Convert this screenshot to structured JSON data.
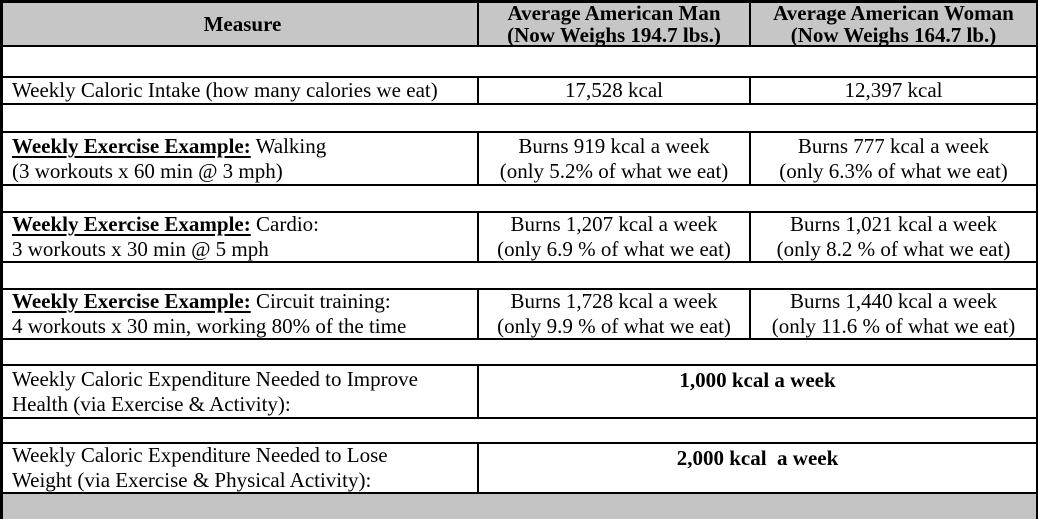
{
  "colors": {
    "header_bg": "#c6c6c6",
    "footer_bg": "#c3c3c3",
    "border": "#000000",
    "text": "#000000"
  },
  "table": {
    "header": {
      "measure": "Measure",
      "man": "Average American Man\n(Now Weighs 194.7 lbs.)",
      "woman": "Average American Woman\n(Now Weighs 164.7 lb.)"
    },
    "rows": [
      {
        "measure": "Weekly Caloric Intake (how many calories we eat)",
        "man": "17,528 kcal",
        "woman": "12,397 kcal"
      },
      {
        "measure_prefix": "Weekly Exercise Example:",
        "measure_rest": " Walking\n(3 workouts x 60 min @ 3 mph)",
        "man": "Burns 919 kcal a week\n(only 5.2% of what we eat)",
        "woman": "Burns 777 kcal a week\n(only 6.3% of what we eat)"
      },
      {
        "measure_prefix": "Weekly Exercise Example:",
        "measure_rest": " Cardio:\n3 workouts x 30 min @ 5 mph",
        "man": "Burns 1,207 kcal a week\n(only 6.9 % of what we eat)",
        "woman": "Burns 1,021 kcal a week\n(only 8.2 % of what we eat)"
      },
      {
        "measure_prefix": "Weekly Exercise Example:",
        "measure_rest": " Circuit training:\n4 workouts x 30 min, working 80% of the time",
        "man": "Burns 1,728 kcal a week\n(only 9.9 % of what we eat)",
        "woman": "Burns 1,440 kcal a week\n(only 11.6 % of what we eat)"
      },
      {
        "measure": "Weekly Caloric Expenditure Needed to Improve\nHealth (via Exercise & Activity):",
        "merged": "1,000 kcal a week"
      },
      {
        "measure": "Weekly Caloric Expenditure Needed to Lose\nWeight (via Exercise & Physical Activity):",
        "merged": "2,000 kcal  a week"
      }
    ]
  }
}
